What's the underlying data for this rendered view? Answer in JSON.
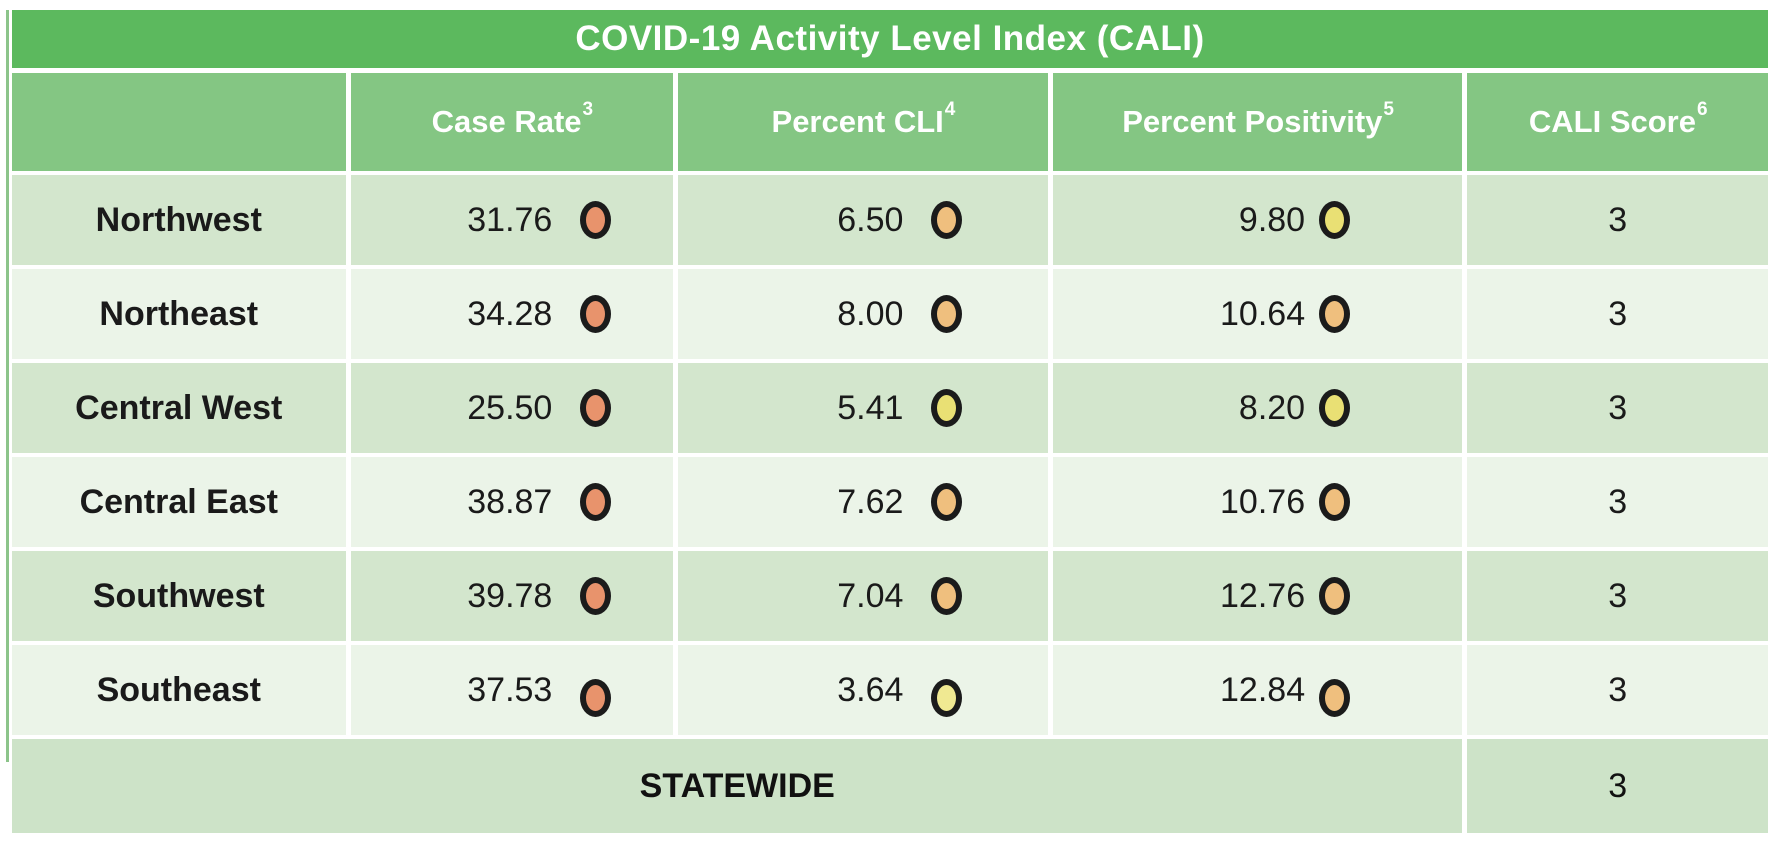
{
  "colors": {
    "title_bar": "#5CB95E",
    "header_bar": "#84C683",
    "row_dark": "#D3E6CD",
    "row_light": "#EBF4E8",
    "statewide_row": "#CDE3C8",
    "title_text": "#FFFFFF",
    "body_text": "#1A1A1A",
    "dot_outline": "#1B1B1B",
    "dot_levels": {
      "orange": "#E8936C",
      "light_orange": "#EFBF7E",
      "yellow": "#E9E074",
      "light_yellow": "#F0E992"
    }
  },
  "chart_data": {
    "type": "table",
    "title": "COVID-19 Activity Level Index (CALI)",
    "columns": [
      {
        "label": "",
        "superscript": ""
      },
      {
        "label": "Case Rate",
        "superscript": "3"
      },
      {
        "label": "Percent CLI",
        "superscript": "4"
      },
      {
        "label": "Percent Positivity",
        "superscript": "5"
      },
      {
        "label": "CALI Score",
        "superscript": "6"
      }
    ],
    "rows": [
      {
        "region": "Northwest",
        "case_rate": {
          "value": "31.76",
          "dot_level": "orange",
          "dot_color": "#E8936C"
        },
        "percent_cli": {
          "value": "6.50",
          "dot_level": "light_orange",
          "dot_color": "#EFBF7E"
        },
        "percent_positivity": {
          "value": "9.80",
          "dot_level": "yellow",
          "dot_color": "#E9E074"
        },
        "cali_score": "3"
      },
      {
        "region": "Northeast",
        "case_rate": {
          "value": "34.28",
          "dot_level": "orange",
          "dot_color": "#E8936C"
        },
        "percent_cli": {
          "value": "8.00",
          "dot_level": "light_orange",
          "dot_color": "#EFBF7E"
        },
        "percent_positivity": {
          "value": "10.64",
          "dot_level": "light_orange",
          "dot_color": "#EFBF7E"
        },
        "cali_score": "3"
      },
      {
        "region": "Central West",
        "case_rate": {
          "value": "25.50",
          "dot_level": "orange",
          "dot_color": "#E8936C"
        },
        "percent_cli": {
          "value": "5.41",
          "dot_level": "yellow",
          "dot_color": "#E9E074"
        },
        "percent_positivity": {
          "value": "8.20",
          "dot_level": "yellow",
          "dot_color": "#E9E074"
        },
        "cali_score": "3"
      },
      {
        "region": "Central East",
        "case_rate": {
          "value": "38.87",
          "dot_level": "orange",
          "dot_color": "#E8936C"
        },
        "percent_cli": {
          "value": "7.62",
          "dot_level": "light_orange",
          "dot_color": "#EFBF7E"
        },
        "percent_positivity": {
          "value": "10.76",
          "dot_level": "light_orange",
          "dot_color": "#EFBF7E"
        },
        "cali_score": "3"
      },
      {
        "region": "Southwest",
        "case_rate": {
          "value": "39.78",
          "dot_level": "orange",
          "dot_color": "#E8936C"
        },
        "percent_cli": {
          "value": "7.04",
          "dot_level": "light_orange",
          "dot_color": "#EFBF7E"
        },
        "percent_positivity": {
          "value": "12.76",
          "dot_level": "light_orange",
          "dot_color": "#EFBF7E"
        },
        "cali_score": "3"
      },
      {
        "region": "Southeast",
        "case_rate": {
          "value": "37.53",
          "dot_level": "orange",
          "dot_color": "#E8936C"
        },
        "percent_cli": {
          "value": "3.64",
          "dot_level": "light_yellow",
          "dot_color": "#F0E992"
        },
        "percent_positivity": {
          "value": "12.84",
          "dot_level": "light_orange",
          "dot_color": "#EFBF7E"
        },
        "cali_score": "3"
      }
    ],
    "footer": {
      "label": "STATEWIDE",
      "cali_score": "3"
    }
  }
}
